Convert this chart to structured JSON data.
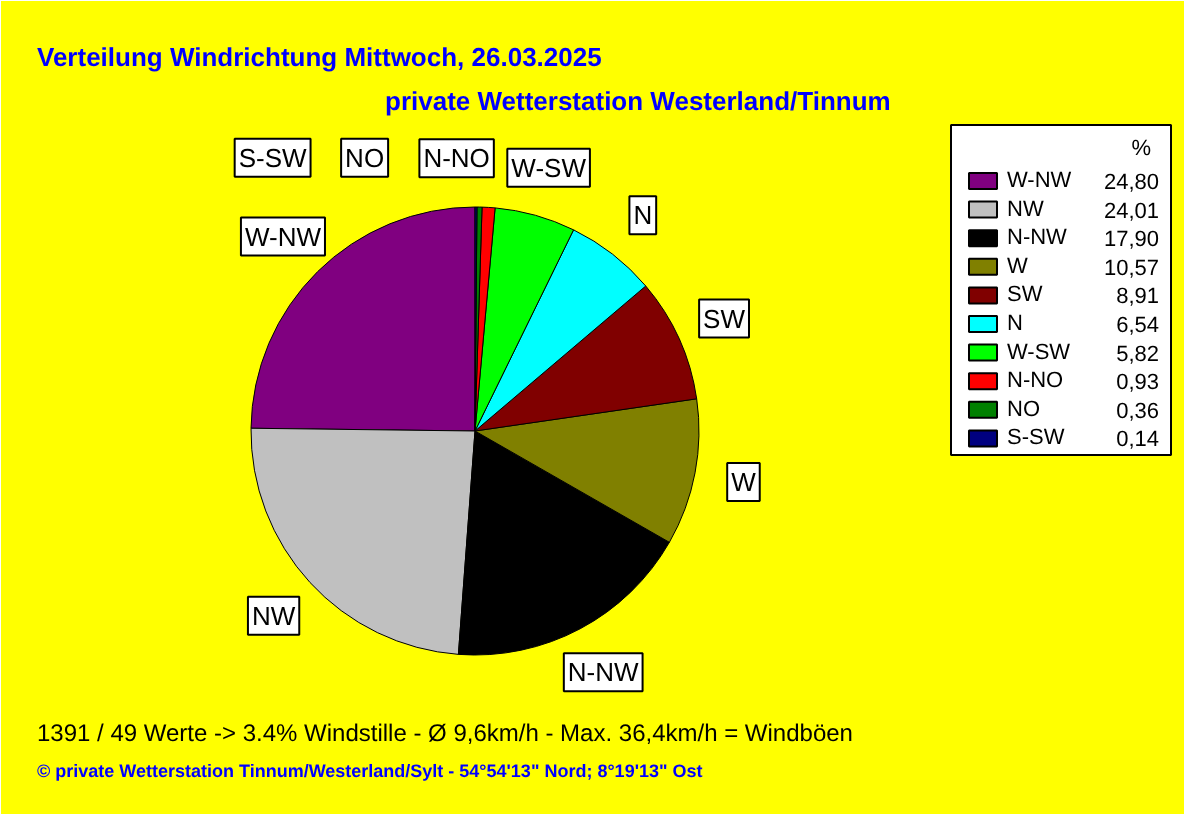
{
  "chart_data": {
    "type": "pie",
    "title": "Verteilung Windrichtung   Mittwoch, 26.03.2025",
    "subtitle": "private Wetterstation Westerland/Tinnum",
    "categories": [
      "W-NW",
      "NW",
      "N-NW",
      "W",
      "SW",
      "N",
      "W-SW",
      "N-NO",
      "NO",
      "S-SW"
    ],
    "values": [
      24.8,
      24.01,
      17.9,
      10.57,
      8.91,
      6.54,
      5.82,
      0.93,
      0.36,
      0.14
    ],
    "colors": [
      "#800080",
      "#c0c0c0",
      "#000000",
      "#808000",
      "#800000",
      "#00ffff",
      "#00ff00",
      "#ff0000",
      "#008000",
      "#000080"
    ],
    "value_labels": [
      "24,80",
      "24,01",
      "17,90",
      "10,57",
      "8,91",
      "6,54",
      "5,82",
      "0,93",
      "0,36",
      "0,14"
    ],
    "legend": "right",
    "legend_title": "%",
    "annotations": [
      "1391 / 49 Werte  -> 3.4% Windstille   -   Ø 9,6km/h  -  Max. 36,4km/h = Windböen",
      "© private Wetterstation Tinnum/Westerland/Sylt   -   54°54'13\" Nord; 8°19'13\" Ost"
    ]
  }
}
